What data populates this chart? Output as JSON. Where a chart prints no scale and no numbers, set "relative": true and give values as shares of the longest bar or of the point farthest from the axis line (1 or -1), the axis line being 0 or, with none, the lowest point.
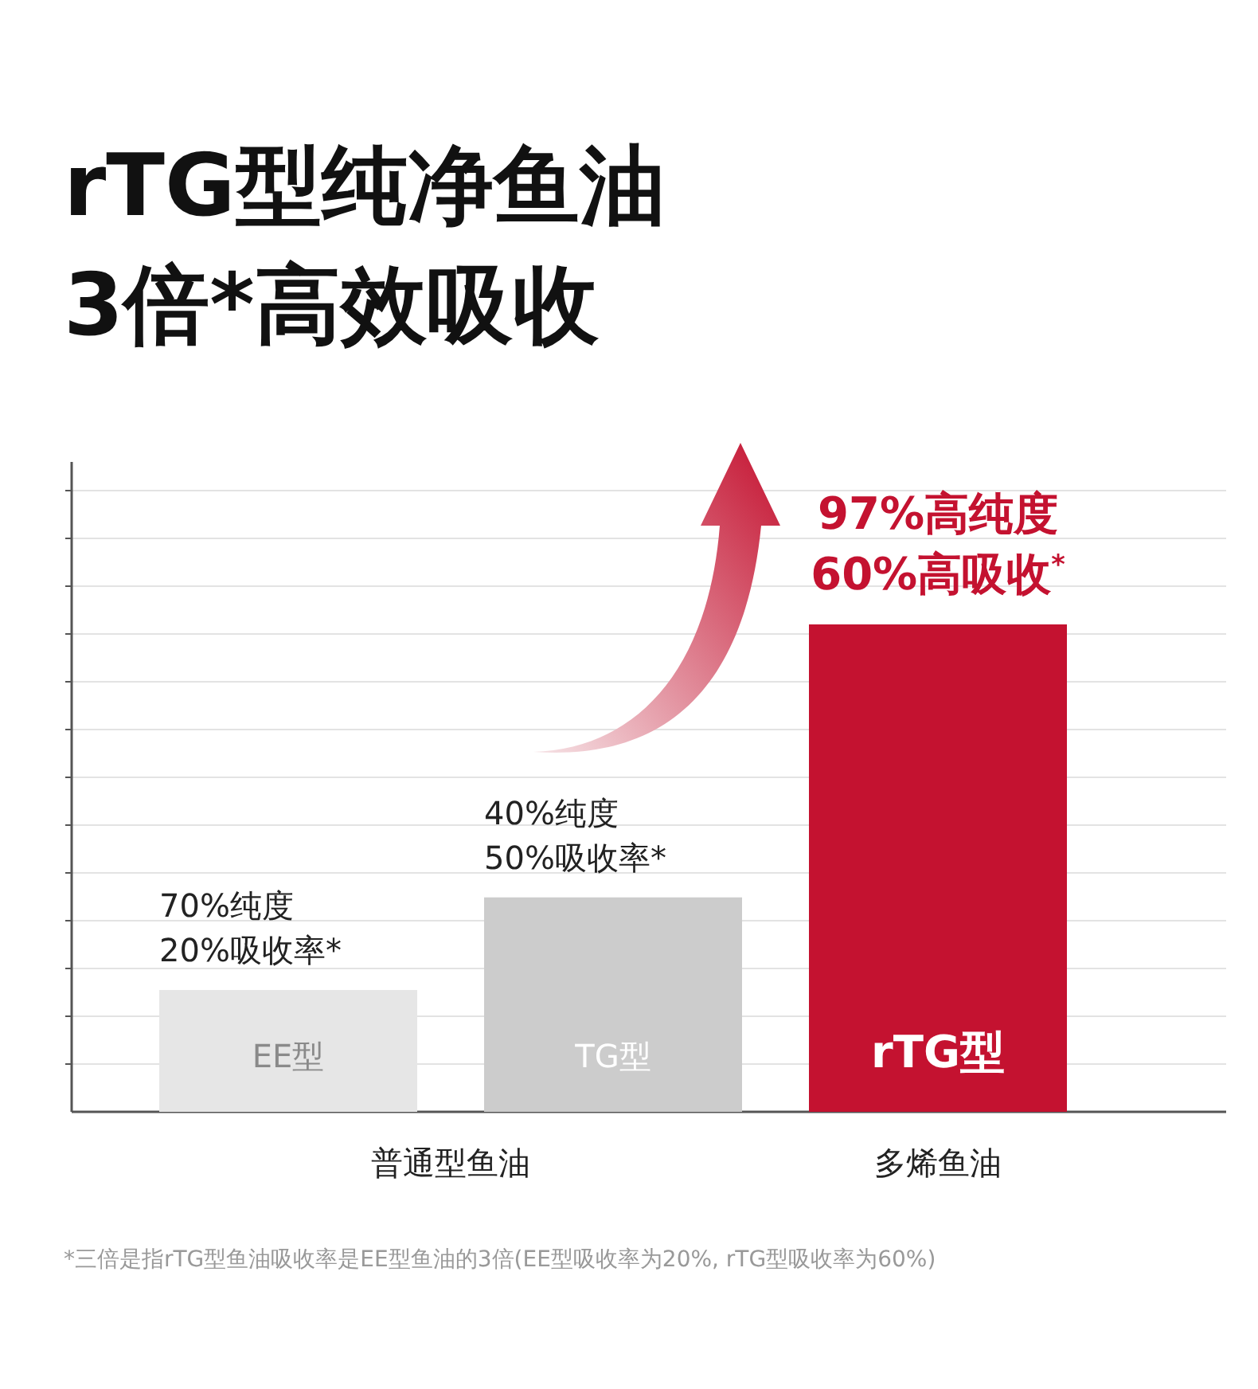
{
  "chart_data": {
    "type": "bar",
    "title": "rTG型纯净鱼油\n3倍*高效吸收",
    "relative": true,
    "grid": "y",
    "categories": [
      "EE型",
      "TG型",
      "rTG型"
    ],
    "values": [
      0.25,
      0.44,
      1
    ],
    "colors": [
      "#e6e6e6",
      "#cccccc",
      "#c41230"
    ],
    "annotations": [
      {
        "text": "70%纯度\n20%吸收率*",
        "x": "EE型",
        "y": 0.25
      },
      {
        "text": "40%纯度\n50%吸收率*",
        "x": "TG型",
        "y": 0.44
      },
      {
        "text": "97%高纯度\n60%高吸收$^{*}$",
        "x": "rTG型",
        "y": 1
      },
      "普通型鱼油",
      "多烯鱼油",
      "*三倍是指rTG型鱼油吸收率是EE型鱼油的3倍(EE型吸收率为20%, rTG型吸收率为60%)"
    ]
  }
}
